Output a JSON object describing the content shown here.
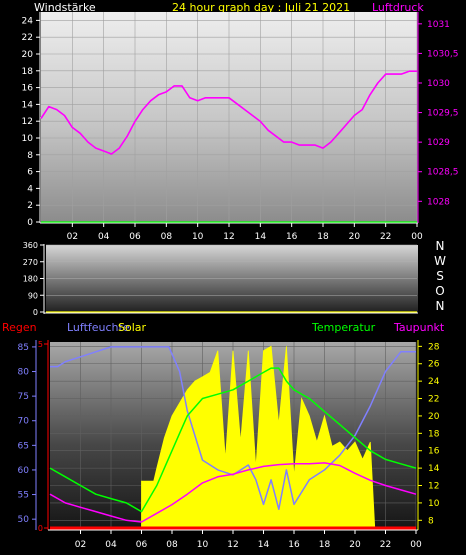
{
  "chart_data": [
    {
      "type": "line",
      "title": "24 hour graph day : Juli 21 2021",
      "left_axis_title": "Windstärke",
      "right_axis_title": "Luftdruck",
      "x_ticks": [
        "02",
        "04",
        "06",
        "08",
        "10",
        "12",
        "14",
        "16",
        "18",
        "20",
        "22",
        "00"
      ],
      "y_left_ticks": [
        "0",
        "2",
        "4",
        "6",
        "8",
        "10",
        "12",
        "14",
        "16",
        "18",
        "20",
        "22",
        "24"
      ],
      "y_left_range": [
        0,
        25
      ],
      "y_right_ticks": [
        "1028",
        "1028,5",
        "1029",
        "1029,5",
        "1030",
        "1030,5",
        "1031"
      ],
      "y_right_range": [
        1027.65,
        1031.2
      ],
      "series": [
        {
          "name": "Luftdruck",
          "axis": "right",
          "color": "#ff00ff",
          "x": [
            0,
            0.5,
            1,
            1.5,
            2,
            2.5,
            3,
            3.5,
            4,
            4.5,
            5,
            5.5,
            6,
            6.5,
            7,
            7.5,
            8,
            8.5,
            9,
            9.5,
            10,
            10.5,
            11,
            11.5,
            12,
            12.5,
            13,
            13.5,
            14,
            14.5,
            15,
            15.5,
            16,
            16.5,
            17,
            17.5,
            18,
            18.5,
            19,
            19.5,
            20,
            20.5,
            21,
            21.5,
            22,
            22.5,
            23,
            23.5,
            24
          ],
          "y": [
            1029.4,
            1029.6,
            1029.55,
            1029.45,
            1029.25,
            1029.15,
            1029.0,
            1028.9,
            1028.85,
            1028.8,
            1028.9,
            1029.1,
            1029.35,
            1029.55,
            1029.7,
            1029.8,
            1029.85,
            1029.95,
            1029.95,
            1029.75,
            1029.7,
            1029.75,
            1029.75,
            1029.75,
            1029.75,
            1029.65,
            1029.55,
            1029.45,
            1029.35,
            1029.2,
            1029.1,
            1029.0,
            1029.0,
            1028.95,
            1028.95,
            1028.95,
            1028.9,
            1029.0,
            1029.15,
            1029.3,
            1029.45,
            1029.55,
            1029.8,
            1030.0,
            1030.15,
            1030.15,
            1030.15,
            1030.2,
            1030.2
          ]
        },
        {
          "name": "Windstärke",
          "axis": "left",
          "color": "#00ff00",
          "x": [
            0,
            24
          ],
          "y": [
            0,
            0
          ]
        }
      ]
    },
    {
      "type": "scatter",
      "y_ticks": [
        "0",
        "90",
        "180",
        "270",
        "360"
      ],
      "y_range": [
        0,
        360
      ],
      "direction_labels": [
        "N",
        "W",
        "S",
        "O",
        "N"
      ],
      "x": [],
      "y": []
    },
    {
      "type": "area",
      "legend": [
        "Regen",
        "Luftfeuchte",
        "Solar",
        "Temperatur",
        "Taupunkt"
      ],
      "legend_colors": [
        "#ff0000",
        "#8080ff",
        "#ffff00",
        "#00ff00",
        "#ff00ff"
      ],
      "x_ticks": [
        "02",
        "04",
        "06",
        "08",
        "10",
        "12",
        "14",
        "16",
        "18",
        "20",
        "22",
        "00"
      ],
      "humidity_ticks": [
        "50",
        "55",
        "60",
        "65",
        "70",
        "75",
        "80",
        "85"
      ],
      "humidity_range": [
        48,
        86
      ],
      "rain_ticks": [
        "0",
        "5"
      ],
      "temp_ticks": [
        "8",
        "10",
        "12",
        "14",
        "16",
        "18",
        "20",
        "22",
        "24",
        "26",
        "28"
      ],
      "temp_range": [
        7,
        28.5
      ],
      "series": [
        {
          "name": "Luftfeuchte",
          "axis": "humidity",
          "color": "#8080ff",
          "x": [
            0,
            0.5,
            1,
            2,
            3,
            4,
            5,
            6,
            7,
            7.8,
            8.5,
            9,
            10,
            11,
            12,
            13,
            13.5,
            14,
            14.5,
            15,
            15.5,
            16,
            17,
            18,
            19,
            20,
            21,
            22,
            23,
            24
          ],
          "y": [
            81,
            81,
            82,
            83,
            84,
            85,
            85,
            85,
            85,
            85,
            80,
            72,
            62,
            60,
            59,
            61,
            58,
            53,
            58,
            52,
            60,
            53,
            58,
            60,
            63,
            67,
            73,
            80,
            84,
            84
          ]
        },
        {
          "name": "Temperatur",
          "axis": "temp",
          "color": "#00ff00",
          "x": [
            0,
            1,
            2,
            3,
            4,
            5,
            6,
            6.5,
            7,
            7.5,
            8,
            8.5,
            9,
            10,
            11,
            12,
            13,
            14,
            14.5,
            15,
            15.5,
            16,
            17,
            18,
            19,
            20,
            21,
            22,
            23,
            24
          ],
          "y": [
            14,
            13,
            12,
            11,
            10.5,
            10,
            9,
            10.5,
            12,
            14,
            16,
            18,
            20,
            22,
            22.5,
            23,
            24,
            25,
            25.5,
            25.5,
            24,
            23,
            22,
            20.5,
            19,
            17.5,
            16,
            15,
            14.5,
            14
          ]
        },
        {
          "name": "Taupunkt",
          "axis": "temp",
          "color": "#ff00ff",
          "x": [
            0,
            1,
            2,
            3,
            4,
            5,
            6,
            7,
            8,
            9,
            10,
            11,
            12,
            13,
            14,
            15,
            16,
            17,
            18,
            19,
            20,
            21,
            22,
            23,
            24
          ],
          "y": [
            11,
            10,
            9.5,
            9,
            8.5,
            8,
            7.8,
            8.8,
            9.8,
            11,
            12.3,
            13,
            13.3,
            13.8,
            14.2,
            14.4,
            14.5,
            14.5,
            14.6,
            14.3,
            13.4,
            12.6,
            12,
            11.5,
            11
          ]
        },
        {
          "name": "Solar",
          "axis": "temp",
          "color": "#ffff00",
          "x": [
            6,
            6.8,
            7,
            7.5,
            8,
            8.5,
            9,
            9.5,
            10,
            10.5,
            11,
            11.5,
            12,
            12.5,
            13,
            13.5,
            14,
            14.5,
            15,
            15.5,
            16,
            16.5,
            17,
            17.5,
            18,
            18.5,
            19,
            19.5,
            20,
            20.5,
            21,
            21.3
          ],
          "y": [
            12.5,
            12.5,
            14,
            17.5,
            20,
            21.5,
            23,
            24,
            24.5,
            25,
            27.5,
            15,
            27.5,
            17,
            27.5,
            14,
            27.5,
            28,
            19,
            28,
            13,
            22,
            20,
            17,
            20,
            16.5,
            17,
            16,
            17,
            15,
            17,
            7
          ]
        },
        {
          "name": "Regen",
          "axis": "rain",
          "color": "#ff0000",
          "x": [
            0,
            24
          ],
          "y": [
            0,
            0
          ]
        }
      ]
    }
  ]
}
